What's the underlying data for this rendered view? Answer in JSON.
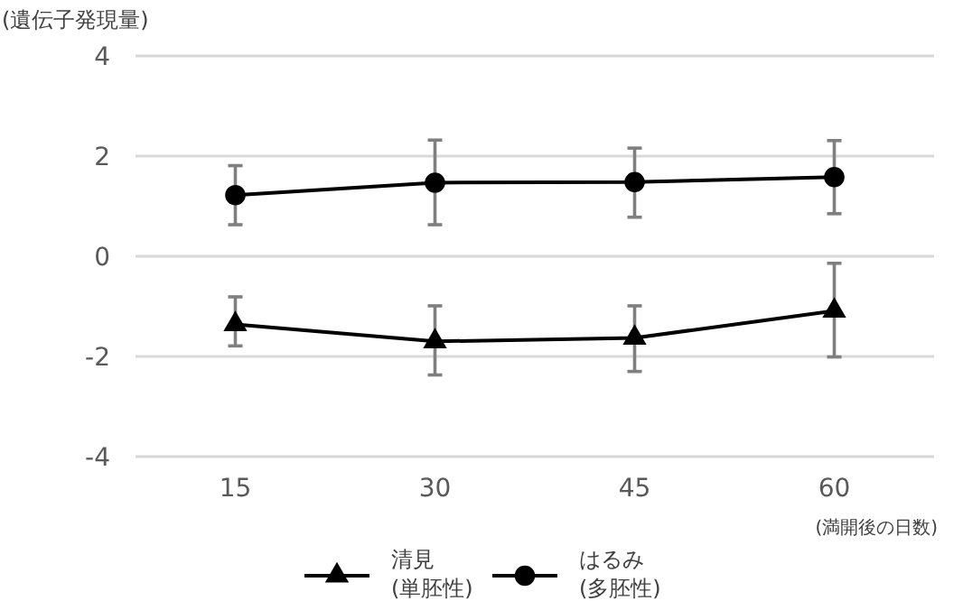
{
  "chart_data": {
    "type": "line",
    "ylabel": "(遺伝子発現量)",
    "xlabel": "(満開後の日数)",
    "categories": [
      "15",
      "30",
      "45",
      "60"
    ],
    "series": [
      {
        "name": "清見\n(単胚性)",
        "color": "#000000",
        "marker": "triangle",
        "values": [
          -1.36,
          -1.7,
          -1.63,
          -1.09
        ],
        "errors": [
          [
            -1.79,
            -0.81
          ],
          [
            -2.37,
            -0.99
          ],
          [
            -2.3,
            -0.99
          ],
          [
            -2.01,
            -0.14
          ]
        ]
      },
      {
        "name": "はるみ\n(多胚性)",
        "color": "#000000",
        "marker": "circle",
        "values": [
          1.22,
          1.47,
          1.48,
          1.58
        ],
        "errors": [
          [
            0.63,
            1.81
          ],
          [
            0.63,
            2.32
          ],
          [
            0.78,
            2.16
          ],
          [
            0.85,
            2.31
          ]
        ]
      }
    ],
    "ylim": [
      -4,
      4
    ],
    "yticks": [
      -4,
      -2,
      0,
      2,
      4
    ],
    "grid": "y",
    "legend": "bottom",
    "line_style": "solid"
  }
}
